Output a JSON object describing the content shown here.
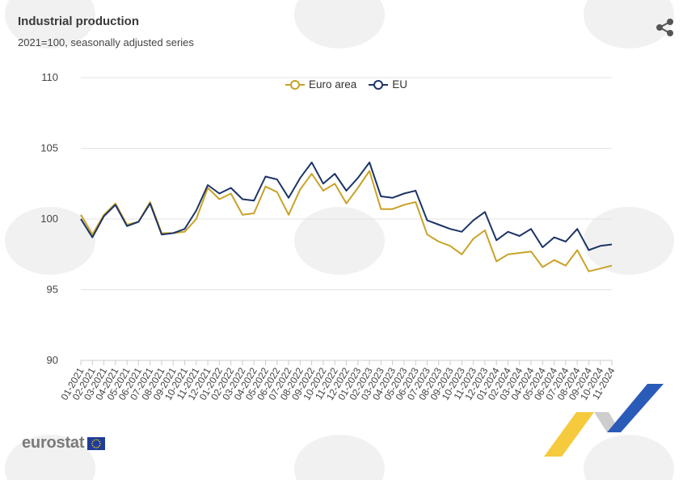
{
  "header": {
    "title": "Industrial production",
    "subtitle": "2021=100, seasonally adjusted series"
  },
  "footer": {
    "logo_text": "eurostat"
  },
  "colors": {
    "euro_area": "#c9a227",
    "eu": "#1c3466",
    "grid": "#e3e3e3",
    "axis": "#cccccc"
  },
  "icons": [
    "share-icon",
    "eu-flag-icon",
    "bta-watermark",
    "bta-ribbon-logo"
  ],
  "chart_data": {
    "type": "line",
    "title": "Industrial production",
    "subtitle": "2021=100, seasonally adjusted series",
    "ylim": [
      90,
      110
    ],
    "yticks": [
      90,
      95,
      100,
      105,
      110
    ],
    "grid": true,
    "legend_placement": "top-center",
    "x": [
      "01-2021",
      "02-2021",
      "03-2021",
      "04-2021",
      "05-2021",
      "06-2021",
      "07-2021",
      "08-2021",
      "09-2021",
      "10-2021",
      "11-2021",
      "12-2021",
      "01-2022",
      "02-2022",
      "03-2022",
      "04-2022",
      "05-2022",
      "06-2022",
      "07-2022",
      "08-2022",
      "09-2022",
      "10-2022",
      "11-2022",
      "12-2022",
      "01-2023",
      "02-2023",
      "03-2023",
      "04-2023",
      "05-2023",
      "06-2023",
      "07-2023",
      "08-2023",
      "09-2023",
      "10-2023",
      "11-2023",
      "12-2023",
      "01-2024",
      "02-2024",
      "03-2024",
      "04-2024",
      "05-2024",
      "06-2024",
      "07-2024",
      "08-2024",
      "09-2024",
      "10-2024",
      "11-2024"
    ],
    "series": [
      {
        "name": "Euro area",
        "values": [
          100.3,
          98.9,
          100.3,
          101.1,
          99.6,
          99.8,
          101.2,
          99.0,
          99.0,
          99.1,
          100.0,
          102.2,
          101.4,
          101.8,
          100.3,
          100.4,
          102.3,
          101.9,
          100.3,
          102.1,
          103.2,
          102.0,
          102.5,
          101.1,
          102.2,
          103.4,
          100.7,
          100.7,
          101.0,
          101.2,
          98.9,
          98.4,
          98.1,
          97.5,
          98.6,
          99.2,
          97.0,
          97.5,
          97.6,
          97.7,
          96.6,
          97.1,
          96.7,
          97.8,
          96.3,
          96.5,
          96.7
        ]
      },
      {
        "name": "EU",
        "values": [
          100.0,
          98.7,
          100.2,
          101.0,
          99.5,
          99.8,
          101.1,
          98.9,
          99.0,
          99.3,
          100.6,
          102.4,
          101.8,
          102.2,
          101.4,
          101.3,
          103.0,
          102.8,
          101.5,
          102.9,
          104.0,
          102.5,
          103.2,
          102.0,
          102.9,
          104.0,
          101.6,
          101.5,
          101.8,
          102.0,
          99.9,
          99.6,
          99.3,
          99.1,
          99.9,
          100.5,
          98.5,
          99.1,
          98.8,
          99.3,
          98.0,
          98.7,
          98.4,
          99.3,
          97.8,
          98.1,
          98.2
        ]
      }
    ]
  }
}
